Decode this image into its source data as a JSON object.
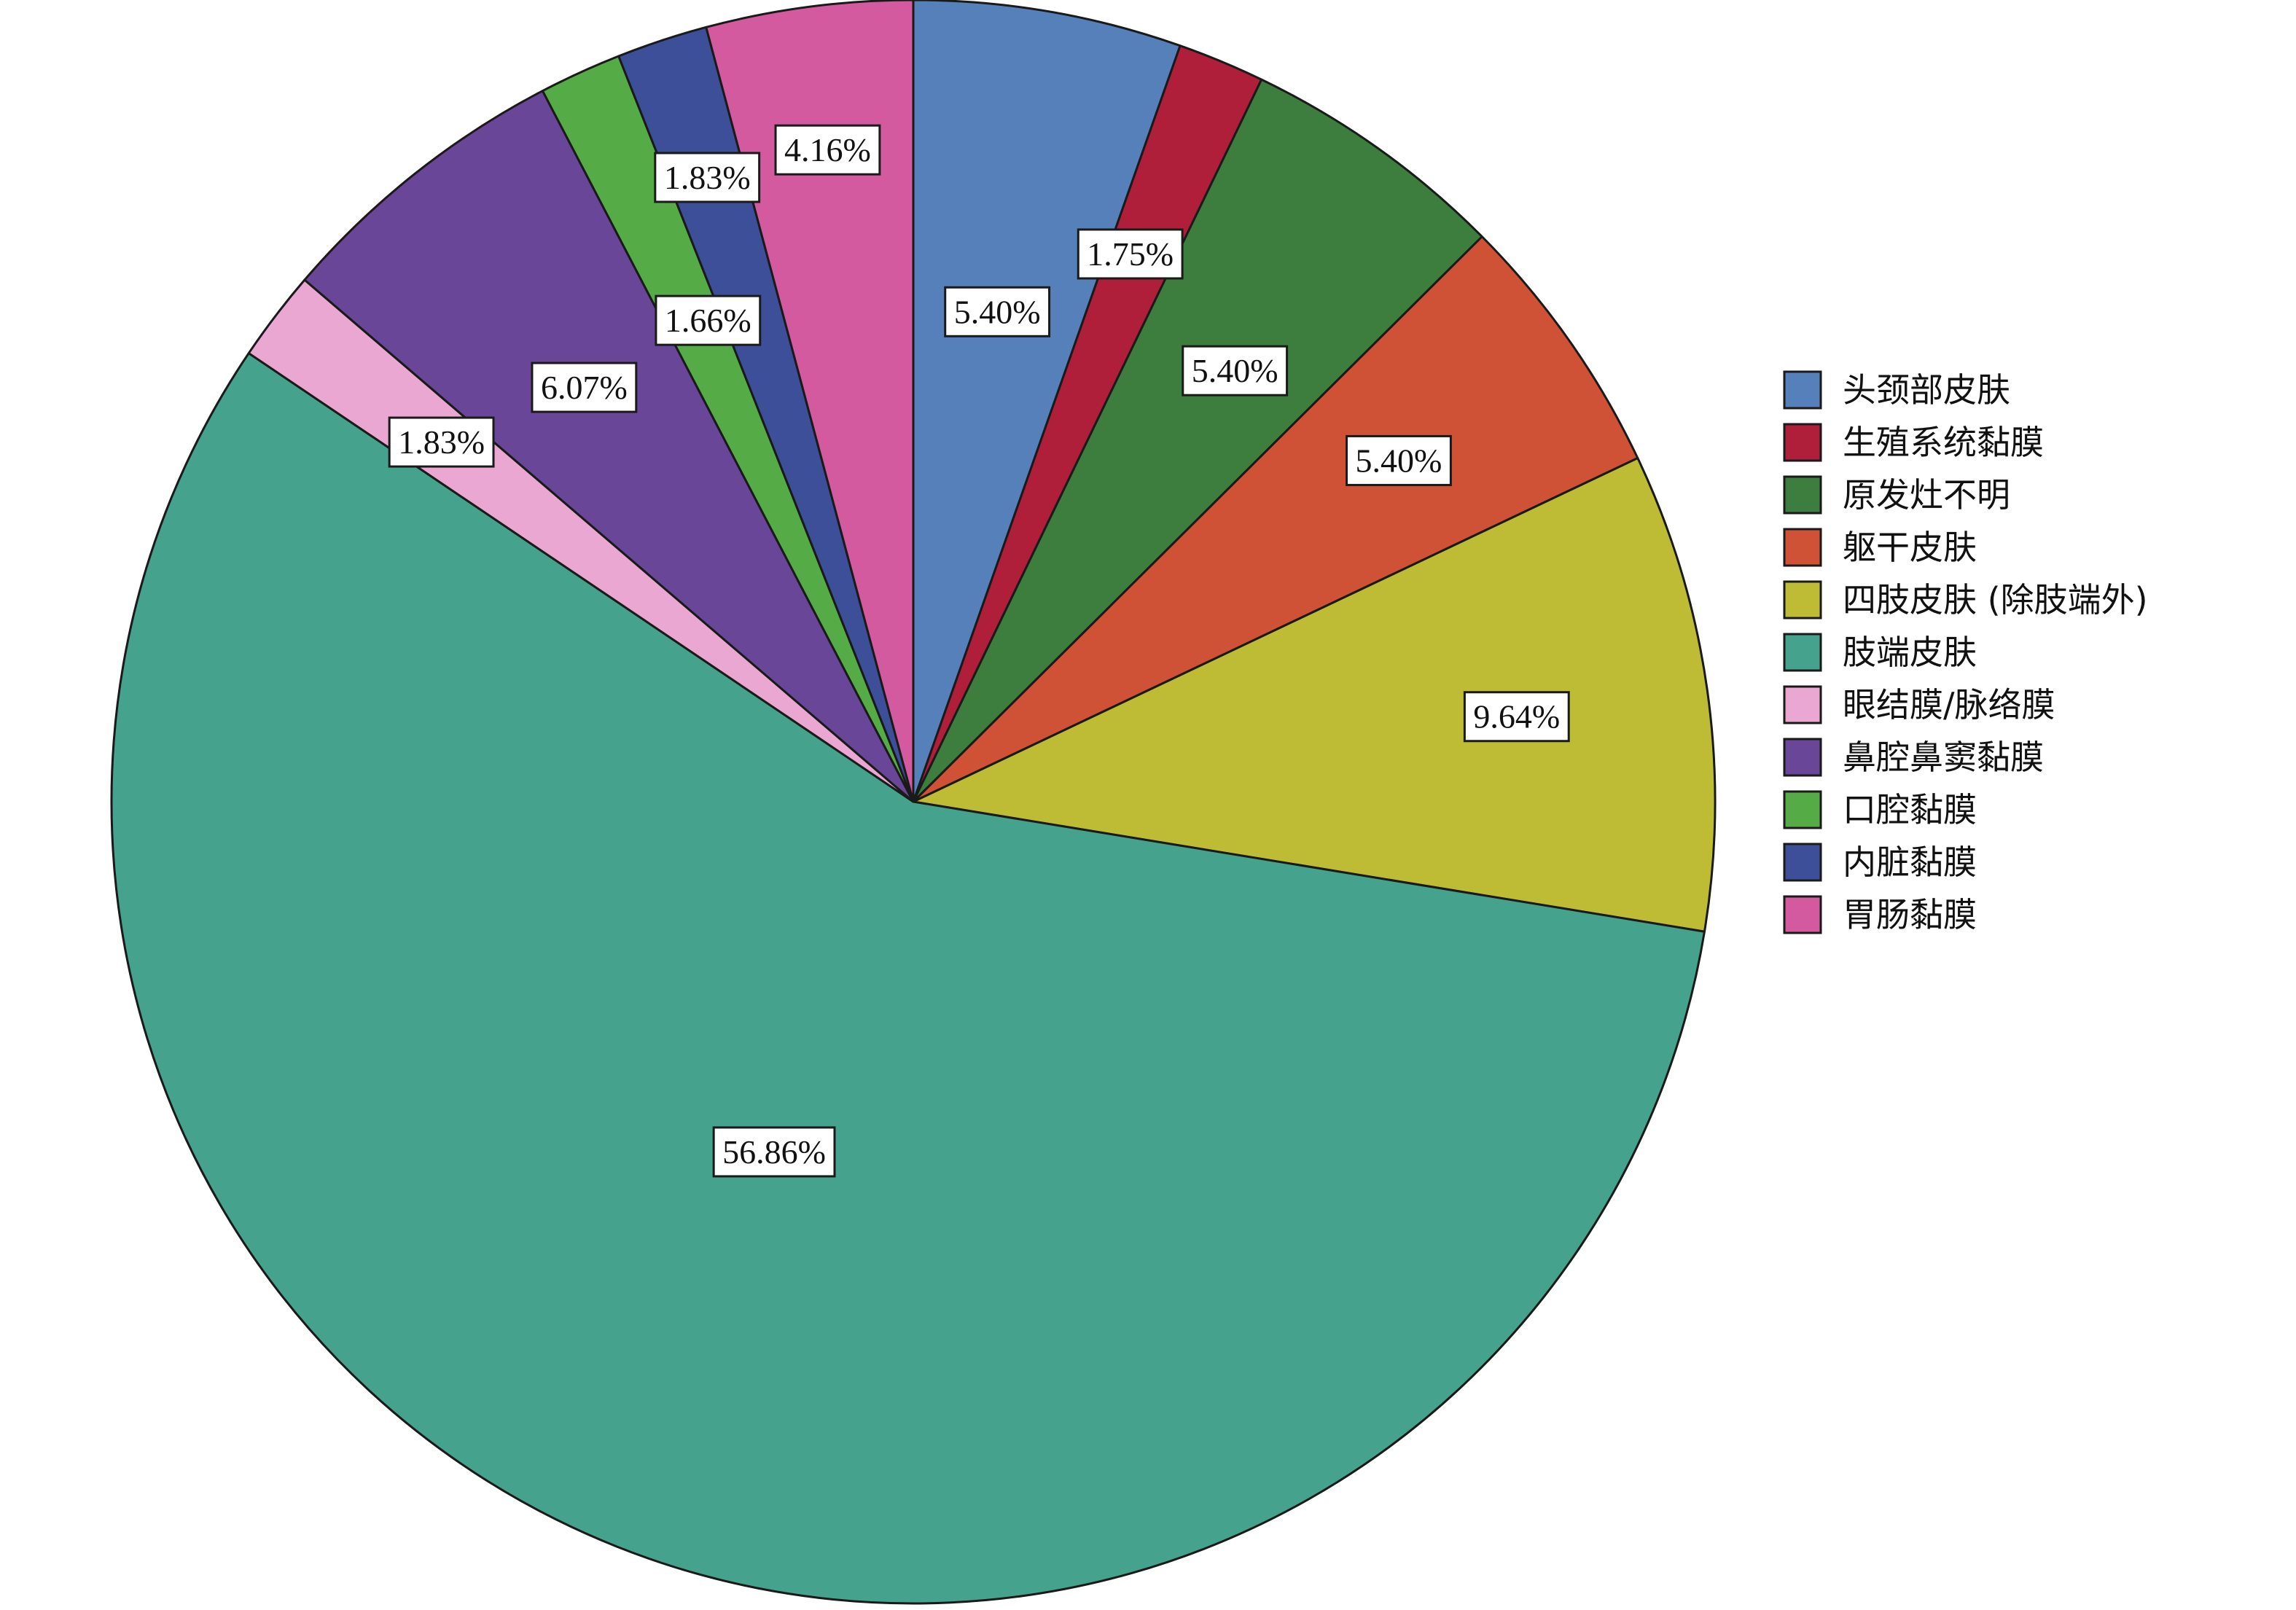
{
  "chart_data": {
    "type": "pie",
    "title": "",
    "start_angle_deg": 0,
    "direction": "clockwise",
    "legend_position": "right",
    "slices": [
      {
        "label": "头颈部皮肤",
        "value": 5.4,
        "display": "5.40%",
        "color": "#5580BA"
      },
      {
        "label": "生殖系统黏膜",
        "value": 1.75,
        "display": "1.75%",
        "color": "#B01F3A"
      },
      {
        "label": "原发灶不明",
        "value": 5.4,
        "display": "5.40%",
        "color": "#3D7D3E"
      },
      {
        "label": "躯干皮肤",
        "value": 5.4,
        "display": "5.40%",
        "color": "#D05236"
      },
      {
        "label": "四肢皮肤 (除肢端外)",
        "value": 9.64,
        "display": "9.64%",
        "color": "#BDBC34"
      },
      {
        "label": "肢端皮肤",
        "value": 56.86,
        "display": "56.86%",
        "color": "#44A28D"
      },
      {
        "label": "眼结膜/脉络膜",
        "value": 1.83,
        "display": "1.83%",
        "color": "#E9A7D2"
      },
      {
        "label": "鼻腔鼻窦黏膜",
        "value": 6.07,
        "display": "6.07%",
        "color": "#6A4699"
      },
      {
        "label": "口腔黏膜",
        "value": 1.66,
        "display": "1.66%",
        "color": "#55AB46"
      },
      {
        "label": "内脏黏膜",
        "value": 1.83,
        "display": "1.83%",
        "color": "#3D4F98"
      },
      {
        "label": "胃肠黏膜",
        "value": 4.16,
        "display": "4.16%",
        "color": "#D45A9F"
      }
    ]
  }
}
